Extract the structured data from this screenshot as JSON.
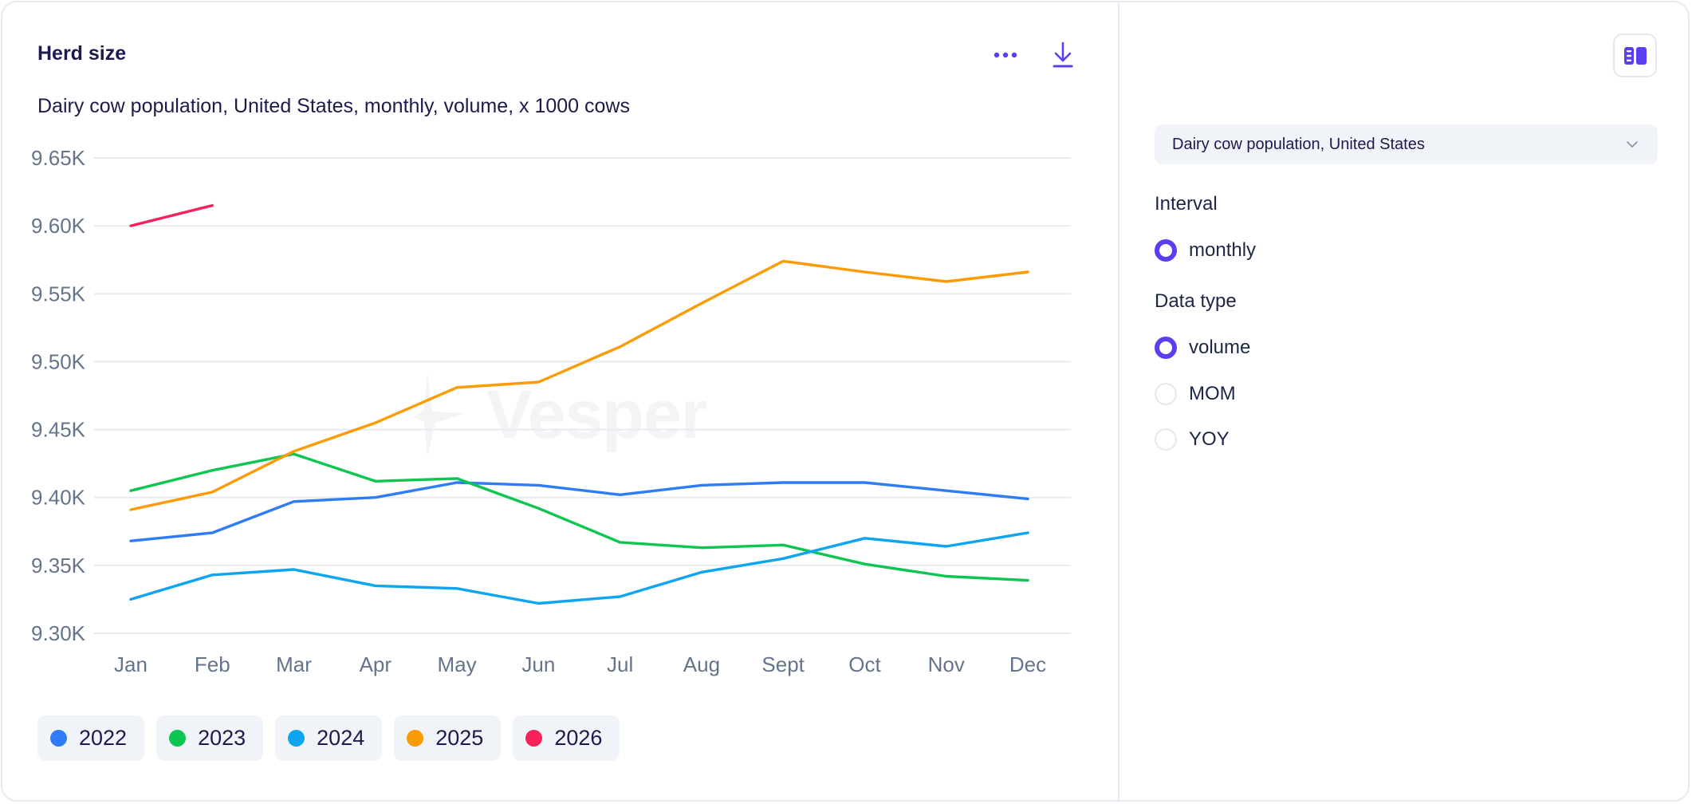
{
  "header": {
    "title": "Herd size",
    "subtitle": "Dairy cow population, United States, monthly, volume, x 1000 cows",
    "more_icon": "more-horizontal-icon",
    "download_icon": "download-icon"
  },
  "watermark": "Vesper",
  "colors": {
    "accent": "#5a3ff0",
    "text": "#1c1b4b",
    "grid": "#e6ebf2",
    "axis_label": "#64748b"
  },
  "sidebar": {
    "panel_toggle_icon": "panel-layout-icon",
    "series_select": {
      "value": "Dairy cow population, United States",
      "icon": "chevron-down-icon"
    },
    "interval": {
      "label": "Interval",
      "options": [
        {
          "label": "monthly",
          "checked": true
        }
      ]
    },
    "data_type": {
      "label": "Data type",
      "options": [
        {
          "label": "volume",
          "checked": true
        },
        {
          "label": "MOM",
          "checked": false
        },
        {
          "label": "YOY",
          "checked": false
        }
      ]
    }
  },
  "chart_data": {
    "type": "line",
    "title": "Herd size",
    "subtitle": "Dairy cow population, United States, monthly, volume, x 1000 cows",
    "xlabel": "",
    "ylabel": "",
    "categories": [
      "Jan",
      "Feb",
      "Mar",
      "Apr",
      "May",
      "Jun",
      "Jul",
      "Aug",
      "Sept",
      "Oct",
      "Nov",
      "Dec"
    ],
    "ylim": [
      9300,
      9650
    ],
    "yticks": [
      9300,
      9350,
      9400,
      9450,
      9500,
      9550,
      9600,
      9650
    ],
    "ytick_labels": [
      "9.30K",
      "9.35K",
      "9.40K",
      "9.45K",
      "9.50K",
      "9.55K",
      "9.60K",
      "9.65K"
    ],
    "grid": true,
    "legend_position": "bottom-left",
    "series": [
      {
        "name": "2022",
        "color": "#2f7cf6",
        "values": [
          9368,
          9374,
          9397,
          9400,
          9411,
          9409,
          9402,
          9409,
          9411,
          9411,
          9405,
          9399
        ]
      },
      {
        "name": "2023",
        "color": "#0cc651",
        "values": [
          9405,
          9420,
          9432,
          9412,
          9414,
          9392,
          9367,
          9363,
          9365,
          9351,
          9342,
          9339
        ]
      },
      {
        "name": "2024",
        "color": "#0ea5f0",
        "values": [
          9325,
          9343,
          9347,
          9335,
          9333,
          9322,
          9327,
          9345,
          9355,
          9370,
          9364,
          9374
        ]
      },
      {
        "name": "2025",
        "color": "#fb9b05",
        "values": [
          9391,
          9404,
          9434,
          9455,
          9481,
          9485,
          9511,
          9543,
          9574,
          9566,
          9559,
          9566
        ]
      },
      {
        "name": "2026",
        "color": "#f7225a",
        "values": [
          9600,
          9615,
          null,
          null,
          null,
          null,
          null,
          null,
          null,
          null,
          null,
          null
        ]
      }
    ]
  }
}
